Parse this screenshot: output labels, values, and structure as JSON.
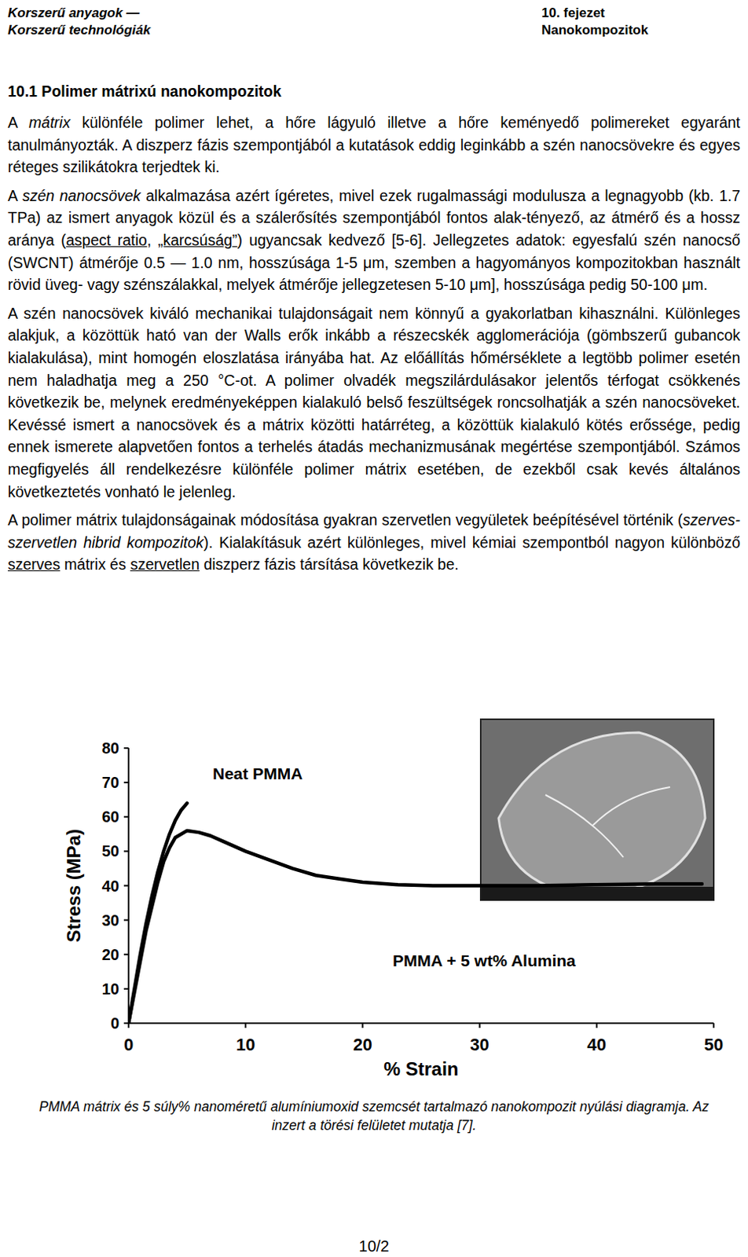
{
  "header": {
    "left": [
      "Korszerű anyagok —",
      "Korszerű technológiák"
    ],
    "right": [
      "10. fejezet",
      "Nanokompozitok"
    ]
  },
  "section_title": "10.1 Polimer mátrixú nanokompozitok",
  "paragraphs": [
    {
      "runs": [
        {
          "text": "A "
        },
        {
          "text": "mátrix",
          "italic": true
        },
        {
          "text": " különféle polimer lehet, a hőre lágyuló illetve a hőre keményedő polimereket egyaránt tanulmányozták. A diszperz fázis szempontjából a kutatások eddig leginkább a szén nanocsövekre és egyes réteges szilikátokra terjedtek ki."
        }
      ]
    },
    {
      "runs": [
        {
          "text": "A "
        },
        {
          "text": "szén nanocsövek",
          "italic": true
        },
        {
          "text": " alkalmazása azért ígéretes, mivel ezek rugalmassági modulusza a legnagyobb (kb. 1.7 TPa) az ismert anyagok közül és a szálerősítés szempontjából fontos alak-tényező, az átmérő és a hossz aránya ("
        },
        {
          "text": "aspect ratio",
          "underline": true
        },
        {
          "text": ", "
        },
        {
          "text": "„karcsúság”",
          "underline": true
        },
        {
          "text": ") ugyancsak kedvező [5-6]. Jellegzetes adatok: egyesfalú szén nanocső (SWCNT) átmérője 0.5 — 1.0 nm, hosszúsága 1-5 μm, szemben a hagyományos kompozitokban használt rövid üveg- vagy szénszálakkal, melyek átmérője jellegzetesen 5-10 μm], hosszúsága pedig 50-100 μm."
        }
      ]
    },
    {
      "runs": [
        {
          "text": "A szén nanocsövek kiváló mechanikai tulajdonságait nem könnyű a gyakorlatban kihasználni. Különleges alakjuk, a közöttük ható van der Walls erők inkább a részecskék agglomerációja (gömbszerű gubancok kialakulása), mint homogén eloszlatása irányába hat. Az előállítás hőmérséklete a legtöbb polimer esetén nem haladhatja meg a 250 °C-ot. A polimer olvadék megszilárdulásakor jelentős térfogat csökkenés következik be, melynek eredményeképpen kialakuló belső feszültségek roncsolhatják a szén nanocsöveket. Kevéssé ismert a nanocsövek és a mátrix közötti határréteg, a közöttük kialakuló kötés erőssége, pedig ennek ismerete alapvetően fontos a terhelés átadás mechanizmusának megértése szempontjából. Számos megfigyelés áll rendelkezésre különféle polimer mátrix esetében, de ezekből csak kevés általános következtetés vonható le jelenleg."
        }
      ]
    },
    {
      "runs": [
        {
          "text": " A polimer mátrix tulajdonságainak módosítása gyakran szervetlen vegyületek beépítésével történik ("
        },
        {
          "text": "szerves-szervetlen hibrid kompozitok",
          "italic": true
        },
        {
          "text": "). Kialakításuk azért különleges, mivel kémiai szempontból nagyon különböző "
        },
        {
          "text": "szerves",
          "underline": true
        },
        {
          "text": " mátrix és "
        },
        {
          "text": "szervetlen",
          "underline": true
        },
        {
          "text": " diszperz fázis társítása következik be."
        }
      ]
    }
  ],
  "chart_data": {
    "type": "line",
    "xlabel": "% Strain",
    "ylabel": "Stress (MPa)",
    "xlim": [
      0,
      50
    ],
    "ylim": [
      0,
      80
    ],
    "xticks": [
      0,
      10,
      20,
      30,
      40,
      50
    ],
    "yticks": [
      0,
      10,
      20,
      30,
      40,
      50,
      60,
      70,
      80
    ],
    "grid": false,
    "series": [
      {
        "name": "Neat PMMA",
        "color": "#000000",
        "x": [
          0,
          0.5,
          1,
          1.5,
          2,
          2.5,
          3,
          3.5,
          4,
          4.5,
          5
        ],
        "values": [
          0,
          10,
          20,
          29,
          37,
          44,
          50,
          55,
          59,
          62,
          64
        ]
      },
      {
        "name": "PMMA + 5 wt% Alumina",
        "color": "#000000",
        "x": [
          0,
          0.5,
          1,
          1.5,
          2,
          2.5,
          3,
          3.5,
          4,
          5,
          6,
          7,
          8,
          10,
          12,
          14,
          16,
          18,
          20,
          23,
          26,
          30,
          35,
          40,
          45,
          49
        ],
        "values": [
          0,
          9,
          18,
          27,
          34,
          41,
          47,
          51,
          54,
          56,
          55.5,
          54.5,
          53,
          50,
          47.5,
          45,
          43,
          42,
          41,
          40.3,
          40,
          40,
          40,
          40.3,
          40.5,
          40.5
        ]
      }
    ]
  },
  "caption": "PMMA mátrix és 5 súly% nanoméretű alumíniumoxid szemcsét tartalmazó nanokompozit nyúlási diagramja. Az inzert a törési felületet mutatja [7].",
  "page_number": "10/2"
}
